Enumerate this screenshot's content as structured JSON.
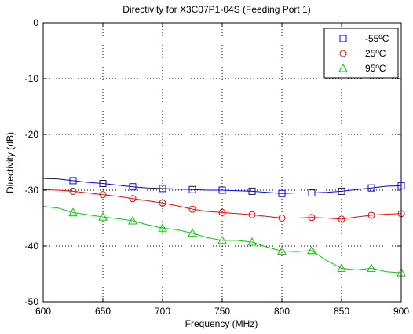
{
  "chart_data": {
    "type": "line",
    "title": "Directivity for X3C07P1-04S (Feeding Port 1)",
    "xlabel": "Frequency (MHz)",
    "ylabel": "Directivity (dB)",
    "xlim": [
      600,
      900
    ],
    "ylim": [
      -50,
      0
    ],
    "x_ticks": [
      600,
      650,
      700,
      750,
      800,
      850,
      900
    ],
    "y_ticks": [
      0,
      -10,
      -20,
      -30,
      -40,
      -50
    ],
    "grid": true,
    "legend_position": "top-right",
    "series": [
      {
        "name": "-55ºC",
        "color": "#0000ff",
        "marker": "square",
        "x": [
          600,
          612.5,
          625,
          637.5,
          650,
          662.5,
          675,
          687.5,
          700,
          712.5,
          725,
          737.5,
          750,
          762.5,
          775,
          787.5,
          800,
          812.5,
          825,
          837.5,
          850,
          862.5,
          875,
          887.5,
          900
        ],
        "y": [
          -27.9,
          -28.0,
          -28.3,
          -28.6,
          -28.8,
          -29.1,
          -29.4,
          -29.6,
          -29.7,
          -29.8,
          -29.9,
          -30.0,
          -30.0,
          -30.1,
          -30.2,
          -30.4,
          -30.6,
          -30.5,
          -30.5,
          -30.4,
          -30.2,
          -29.9,
          -29.6,
          -29.3,
          -29.2
        ],
        "marker_x": [
          625,
          650,
          675,
          700,
          725,
          750,
          775,
          800,
          825,
          850,
          875,
          900
        ],
        "marker_y": [
          -28.3,
          -28.8,
          -29.4,
          -29.7,
          -29.9,
          -30.0,
          -30.2,
          -30.6,
          -30.5,
          -30.2,
          -29.6,
          -29.2
        ]
      },
      {
        "name": "25ºC",
        "color": "#ff0000",
        "marker": "circle",
        "x": [
          600,
          612.5,
          625,
          637.5,
          650,
          662.5,
          675,
          687.5,
          700,
          712.5,
          725,
          737.5,
          750,
          762.5,
          775,
          787.5,
          800,
          812.5,
          825,
          837.5,
          850,
          862.5,
          875,
          887.5,
          900
        ],
        "y": [
          -29.9,
          -30.0,
          -30.2,
          -30.5,
          -30.8,
          -31.1,
          -31.5,
          -31.9,
          -32.3,
          -32.8,
          -33.4,
          -33.8,
          -34.0,
          -34.2,
          -34.4,
          -34.7,
          -35.0,
          -35.0,
          -34.9,
          -35.0,
          -35.2,
          -34.8,
          -34.5,
          -34.3,
          -34.2
        ],
        "marker_x": [
          625,
          650,
          675,
          700,
          725,
          750,
          775,
          800,
          825,
          850,
          875,
          900
        ],
        "marker_y": [
          -30.2,
          -30.8,
          -31.5,
          -32.3,
          -33.4,
          -34.0,
          -34.4,
          -35.0,
          -34.9,
          -35.2,
          -34.5,
          -34.2
        ]
      },
      {
        "name": "95ºC",
        "color": "#00cc00",
        "marker": "triangle",
        "x": [
          600,
          612.5,
          625,
          637.5,
          650,
          662.5,
          675,
          687.5,
          700,
          712.5,
          725,
          737.5,
          750,
          762.5,
          775,
          787.5,
          800,
          812.5,
          825,
          837.5,
          850,
          862.5,
          875,
          887.5,
          900
        ],
        "y": [
          -32.9,
          -33.2,
          -34.0,
          -34.4,
          -34.8,
          -35.1,
          -35.5,
          -36.2,
          -36.8,
          -37.1,
          -37.7,
          -38.5,
          -39.0,
          -39.0,
          -39.3,
          -40.2,
          -40.9,
          -41.0,
          -40.8,
          -42.6,
          -44.0,
          -44.3,
          -44.0,
          -44.6,
          -44.8
        ],
        "marker_x": [
          625,
          650,
          675,
          700,
          725,
          750,
          775,
          800,
          825,
          850,
          875,
          900
        ],
        "marker_y": [
          -34.0,
          -34.8,
          -35.5,
          -36.8,
          -37.7,
          -39.0,
          -39.3,
          -40.9,
          -40.8,
          -44.0,
          -44.0,
          -44.8
        ]
      }
    ]
  }
}
